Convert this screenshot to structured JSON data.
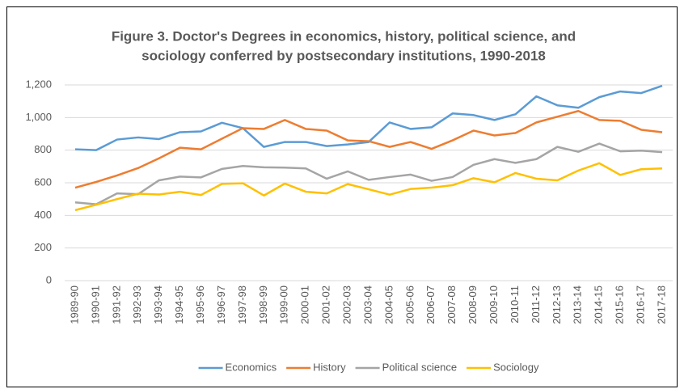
{
  "chart_data": {
    "type": "line",
    "title": [
      "Figure 3. Doctor's Degrees in economics, history, political science, and",
      "sociology conferred by postsecondary institutions, 1990-2018"
    ],
    "categories": [
      "1989-90",
      "1990-91",
      "1991-92",
      "1992-93",
      "1993-94",
      "1994-95",
      "1995-96",
      "1996-97",
      "1997-98",
      "1998-99",
      "1999-00",
      "2000-01",
      "2001-02",
      "2002-03",
      "2003-04",
      "2004-05",
      "2005-06",
      "2006-07",
      "2007-08",
      "2008-09",
      "2009-10",
      "2010-11",
      "2011-12",
      "2012-13",
      "2013-14",
      "2014-15",
      "2015-16",
      "2016-17",
      "2017-18"
    ],
    "series": [
      {
        "name": "Economics",
        "color": "#5b9bd5",
        "values": [
          805,
          800,
          865,
          878,
          868,
          910,
          915,
          968,
          935,
          820,
          850,
          850,
          825,
          835,
          850,
          970,
          930,
          940,
          1025,
          1015,
          985,
          1020,
          1130,
          1075,
          1060,
          1125,
          1160,
          1150,
          1195
        ]
      },
      {
        "name": "History",
        "color": "#ed7d31",
        "values": [
          570,
          605,
          645,
          690,
          750,
          815,
          805,
          870,
          935,
          930,
          985,
          930,
          920,
          860,
          855,
          820,
          850,
          808,
          860,
          920,
          890,
          905,
          970,
          1005,
          1040,
          985,
          980,
          925,
          910
        ]
      },
      {
        "name": "Political science",
        "color": "#a5a5a5",
        "values": [
          480,
          468,
          535,
          530,
          615,
          638,
          633,
          685,
          703,
          695,
          693,
          688,
          625,
          670,
          618,
          635,
          650,
          612,
          635,
          710,
          745,
          722,
          745,
          820,
          790,
          840,
          793,
          797,
          788
        ]
      },
      {
        "name": "Sociology",
        "color": "#ffc000",
        "values": [
          432,
          465,
          500,
          533,
          528,
          545,
          525,
          593,
          597,
          522,
          595,
          545,
          535,
          592,
          560,
          527,
          562,
          570,
          585,
          628,
          603,
          660,
          625,
          615,
          675,
          720,
          648,
          683,
          688
        ]
      }
    ],
    "ylim": [
      0,
      1200
    ],
    "yticks": [
      0,
      200,
      400,
      600,
      800,
      {
        "value": 1000,
        "label": "1,000"
      },
      {
        "value": 1200,
        "label": "1,200"
      }
    ],
    "grid": true,
    "legend": "bottom"
  }
}
